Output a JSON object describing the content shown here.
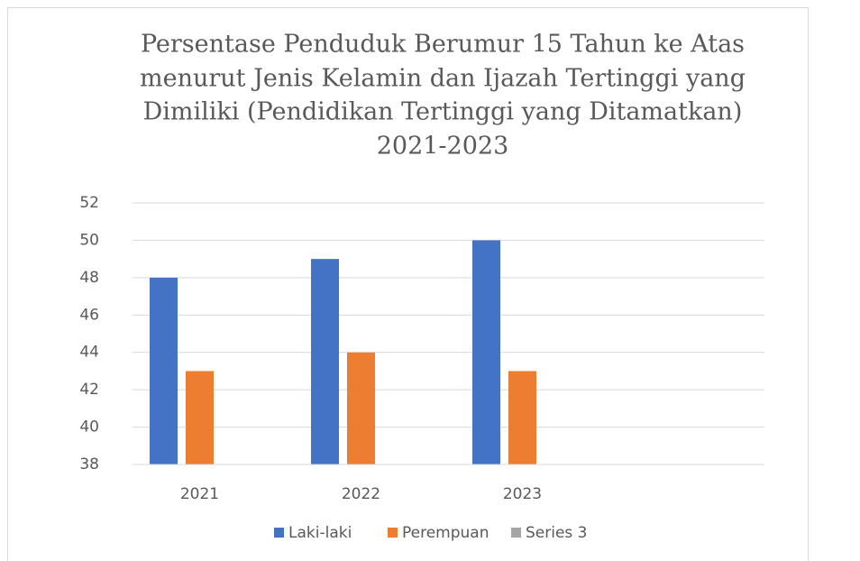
{
  "chart_data": {
    "type": "bar",
    "title": [
      "Persentase Penduduk Berumur 15 Tahun ke Atas",
      "menurut Jenis Kelamin dan Ijazah Tertinggi yang",
      "Dimiliki (Pendidikan Tertinggi yang Ditamatkan)",
      "2021-2023"
    ],
    "categories": [
      "2021",
      "2022",
      "2023",
      null
    ],
    "series": [
      {
        "name": "Laki-laki",
        "color": "#4472c4",
        "values": [
          48,
          49,
          50,
          null
        ]
      },
      {
        "name": "Perempuan",
        "color": "#ed7d31",
        "values": [
          43,
          44,
          43,
          null
        ]
      },
      {
        "name": "Series 3",
        "color": "#a5a5a5",
        "values": [
          null,
          null,
          null,
          null
        ]
      }
    ],
    "ylim": [
      38,
      52
    ],
    "yticks": [
      38,
      40,
      42,
      44,
      46,
      48,
      50,
      52
    ],
    "grid": true,
    "legend": "bottom"
  }
}
